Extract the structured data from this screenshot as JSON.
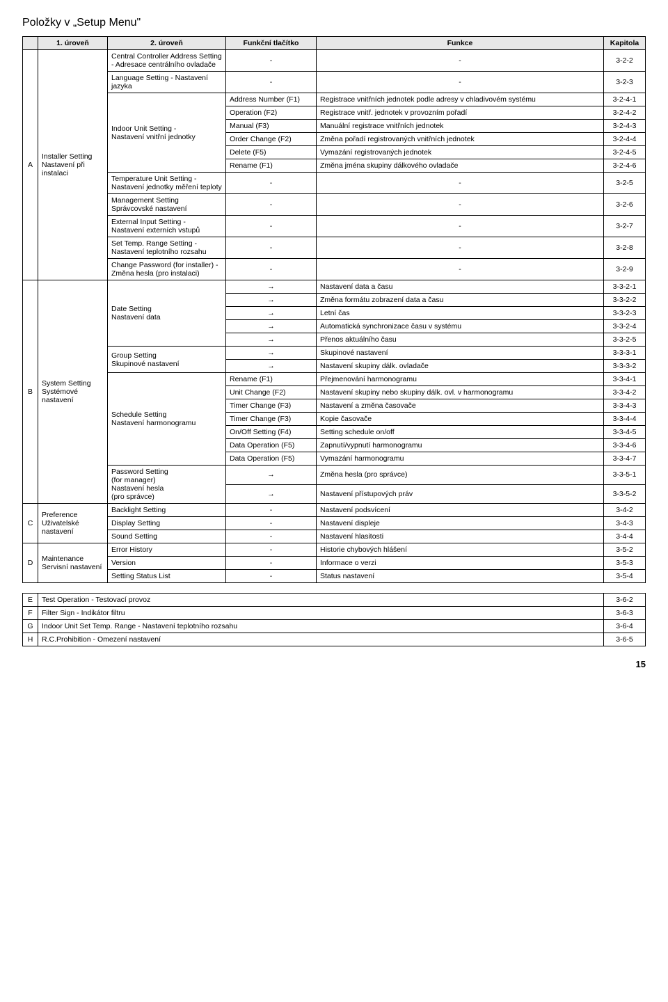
{
  "title": "Položky v „Setup Menu\"",
  "headers": {
    "blank": "",
    "lvl1": "1. úroveň",
    "lvl2": "2. úroveň",
    "btn": "Funkční tlačítko",
    "func": "Funkce",
    "chap": "Kapitola"
  },
  "letters": {
    "A": "A",
    "B": "B",
    "C": "C",
    "D": "D",
    "E": "E",
    "F": "F",
    "G": "G",
    "H": "H"
  },
  "A": {
    "lvl1": "Installer Setting\nNastavení při instalaci",
    "rows": [
      {
        "lvl2": "Central Controller Address Setting\n- Adresace centrálního ovladače",
        "btn": "-",
        "func": "-",
        "chap": "3-2-2"
      },
      {
        "lvl2": "Language Setting - Nastavení jazyka",
        "btn": "-",
        "func": "-",
        "chap": "3-2-3"
      },
      {
        "lvl2_rowspan": 6,
        "lvl2": "Indoor Unit Setting -\nNastavení vnitřní jednotky",
        "btn": "Address Number (F1)",
        "func": "Registrace vnitřních jednotek podle adresy v chladivovém systému",
        "chap": "3-2-4-1"
      },
      {
        "btn": "Operation (F2)",
        "func": "Registrace vnitř. jednotek v provozním pořadí",
        "chap": "3-2-4-2"
      },
      {
        "btn": "Manual (F3)",
        "func": "Manuální registrace vnitřních jednotek",
        "chap": "3-2-4-3"
      },
      {
        "btn": "Order Change (F2)",
        "func": "Změna pořadí registrovaných vnitřních jednotek",
        "chap": "3-2-4-4"
      },
      {
        "btn": "Delete (F5)",
        "func": "Vymazání registrovaných jednotek",
        "chap": "3-2-4-5"
      },
      {
        "btn": "Rename (F1)",
        "func": "Změna jména skupiny dálkového ovladače",
        "chap": "3-2-4-6"
      },
      {
        "lvl2": "Temperature Unit Setting - Nastavení jednotky měření teploty",
        "btn": "-",
        "func": "-",
        "chap": "3-2-5"
      },
      {
        "lvl2": "Management Setting\nSprávcovské nastavení",
        "btn": "-",
        "func": "-",
        "chap": "3-2-6"
      },
      {
        "lvl2": "External Input Setting -\nNastavení externích vstupů",
        "btn": "-",
        "func": "-",
        "chap": "3-2-7"
      },
      {
        "lvl2": "Set Temp. Range Setting -\nNastavení teplotního rozsahu",
        "btn": "-",
        "func": "-",
        "chap": "3-2-8"
      },
      {
        "lvl2": "Change Password (for installer) -\nZměna hesla (pro instalaci)",
        "btn": "-",
        "func": "-",
        "chap": "3-2-9"
      }
    ]
  },
  "B": {
    "lvl1": "System Setting\nSystémové nastavení",
    "rows": [
      {
        "lvl2_rowspan": 5,
        "lvl2": "Date Setting\nNastavení data",
        "btn": "→",
        "func": "Nastavení data a času",
        "chap": "3-3-2-1"
      },
      {
        "btn": "→",
        "func": "Změna formátu zobrazení data a času",
        "chap": "3-3-2-2"
      },
      {
        "btn": "→",
        "func": "Letní čas",
        "chap": "3-3-2-3"
      },
      {
        "btn": "→",
        "func": "Automatická synchronizace času v systému",
        "chap": "3-3-2-4"
      },
      {
        "btn": "→",
        "func": "Přenos aktuálního času",
        "chap": "3-3-2-5"
      },
      {
        "lvl2_rowspan": 2,
        "lvl2": "Group Setting\nSkupinové nastavení",
        "btn": "→",
        "func": "Skupinové nastavení",
        "chap": "3-3-3-1"
      },
      {
        "btn": "→",
        "func": "Nastavení skupiny dálk. ovladače",
        "chap": "3-3-3-2"
      },
      {
        "lvl2_rowspan": 7,
        "lvl2": "Schedule Setting\nNastavení harmonogramu",
        "btn": "Rename (F1)",
        "func": "Přejmenování harmonogramu",
        "chap": "3-3-4-1"
      },
      {
        "btn": "Unit  Change (F2)",
        "func": "Nastavení skupiny nebo skupiny dálk. ovl. v harmonogramu",
        "chap": "3-3-4-2"
      },
      {
        "btn": "Timer Change (F3)",
        "func": "Nastavení a změna časovače",
        "chap": "3-3-4-3"
      },
      {
        "btn": "Timer Change (F3)",
        "func": "Kopie časovače",
        "chap": "3-3-4-4"
      },
      {
        "btn": "On/Off Setting (F4)",
        "func": "Setting schedule on/off",
        "chap": "3-3-4-5"
      },
      {
        "btn": "Data Operation (F5)",
        "func": "Zapnutí/vypnutí harmonogramu",
        "chap": "3-3-4-6"
      },
      {
        "btn": "Data Operation (F5)",
        "func": "Vymazání harmonogramu",
        "chap": "3-3-4-7"
      },
      {
        "lvl2_rowspan": 2,
        "lvl2": "Password Setting\n(for manager)\nNastavení hesla\n(pro správce)",
        "btn": "→",
        "func": "Změna hesla (pro správce)",
        "chap": "3-3-5-1"
      },
      {
        "btn": "→",
        "func": "Nastavení přístupových práv",
        "chap": "3-3-5-2"
      }
    ]
  },
  "C": {
    "lvl1": "Preference\nUživatelské nastavení",
    "rows": [
      {
        "lvl2": "Backlight Setting",
        "btn": "-",
        "func": "Nastavení podsvícení",
        "chap": "3-4-2"
      },
      {
        "lvl2": "Display Setting",
        "btn": "-",
        "func": "Nastavení displeje",
        "chap": "3-4-3"
      },
      {
        "lvl2": "Sound Setting",
        "btn": "-",
        "func": "Nastavení hlasitosti",
        "chap": "3-4-4"
      }
    ]
  },
  "D": {
    "lvl1": "Maintenance\nServisní nastavení",
    "rows": [
      {
        "lvl2": "Error History",
        "btn": "-",
        "func": "Historie chybových hlášení",
        "chap": "3-5-2"
      },
      {
        "lvl2": "Version",
        "btn": "-",
        "func": "Informace o verzi",
        "chap": "3-5-3"
      },
      {
        "lvl2": "Setting Status List",
        "btn": "-",
        "func": "Status nastavení",
        "chap": "3-5-4"
      }
    ]
  },
  "second": [
    {
      "letter": "E",
      "text": "Test Operation - Testovací provoz",
      "chap": "3-6-2"
    },
    {
      "letter": "F",
      "text": "Filter Sign - Indikátor filtru",
      "chap": "3-6-3"
    },
    {
      "letter": "G",
      "text": "Indoor Unit Set Temp. Range - Nastavení teplotního rozsahu",
      "chap": "3-6-4"
    },
    {
      "letter": "H",
      "text": "R.C.Prohibition - Omezení nastavení",
      "chap": "3-6-5"
    }
  ],
  "pageNumber": "15"
}
